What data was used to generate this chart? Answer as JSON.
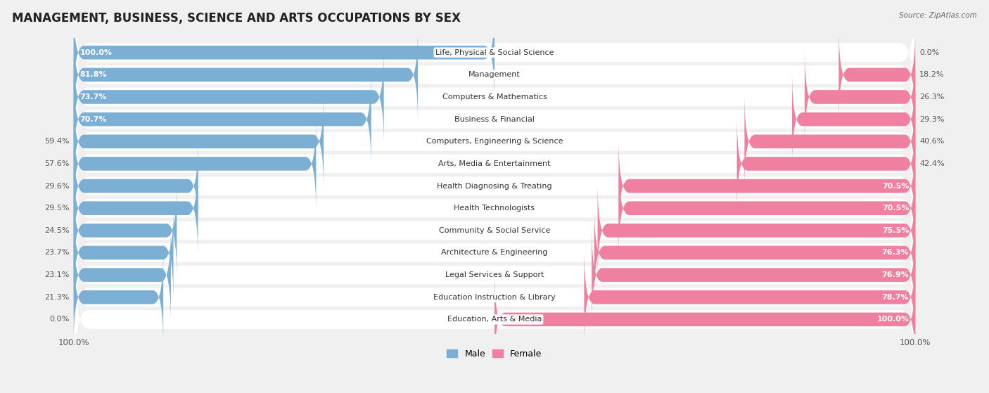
{
  "title": "MANAGEMENT, BUSINESS, SCIENCE AND ARTS OCCUPATIONS BY SEX",
  "source": "Source: ZipAtlas.com",
  "categories": [
    "Life, Physical & Social Science",
    "Management",
    "Computers & Mathematics",
    "Business & Financial",
    "Computers, Engineering & Science",
    "Arts, Media & Entertainment",
    "Health Diagnosing & Treating",
    "Health Technologists",
    "Community & Social Service",
    "Architecture & Engineering",
    "Legal Services & Support",
    "Education Instruction & Library",
    "Education, Arts & Media"
  ],
  "male": [
    100.0,
    81.8,
    73.7,
    70.7,
    59.4,
    57.6,
    29.6,
    29.5,
    24.5,
    23.7,
    23.1,
    21.3,
    0.0
  ],
  "female": [
    0.0,
    18.2,
    26.3,
    29.3,
    40.6,
    42.4,
    70.5,
    70.5,
    75.5,
    76.3,
    76.9,
    78.7,
    100.0
  ],
  "male_color": "#7BAFD4",
  "female_color": "#F080A0",
  "bg_color": "#f0f0f0",
  "row_bg_color": "#e8e8e8",
  "title_fontsize": 12,
  "label_fontsize": 8,
  "pct_fontsize": 8,
  "bar_height": 0.62,
  "legend_male_label": "Male",
  "legend_female_label": "Female"
}
